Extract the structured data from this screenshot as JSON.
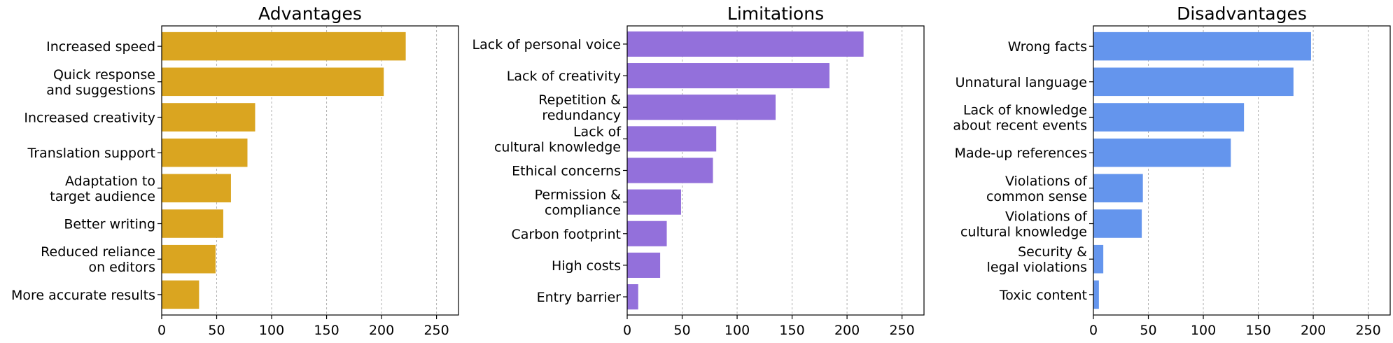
{
  "chart_data": [
    {
      "type": "bar",
      "orientation": "horizontal",
      "title": "Advantages",
      "color": "#DAA520",
      "xlim": [
        0,
        270
      ],
      "xticks": [
        "0",
        "50",
        "100",
        "150",
        "200",
        "250"
      ],
      "grid": "x-dashed",
      "categories": [
        [
          "Increased speed"
        ],
        [
          "Quick response",
          "and suggestions"
        ],
        [
          "Increased creativity"
        ],
        [
          "Translation support"
        ],
        [
          "Adaptation to",
          "target audience"
        ],
        [
          "Better writing"
        ],
        [
          "Reduced reliance",
          "on editors"
        ],
        [
          "More accurate results"
        ]
      ],
      "values": [
        222,
        202,
        85,
        78,
        63,
        56,
        49,
        34
      ]
    },
    {
      "type": "bar",
      "orientation": "horizontal",
      "title": "Limitations",
      "color": "#9370DB",
      "xlim": [
        0,
        270
      ],
      "xticks": [
        "0",
        "50",
        "100",
        "150",
        "200",
        "250"
      ],
      "grid": "x-dashed",
      "categories": [
        [
          "Lack of personal voice"
        ],
        [
          "Lack of creativity"
        ],
        [
          "Repetition &",
          "redundancy"
        ],
        [
          "Lack of",
          "cultural knowledge"
        ],
        [
          "Ethical concerns"
        ],
        [
          "Permission &",
          "compliance"
        ],
        [
          "Carbon footprint"
        ],
        [
          "High costs"
        ],
        [
          "Entry barrier"
        ]
      ],
      "values": [
        215,
        184,
        135,
        81,
        78,
        49,
        36,
        30,
        10
      ]
    },
    {
      "type": "bar",
      "orientation": "horizontal",
      "title": "Disadvantages",
      "color": "#6495ED",
      "xlim": [
        0,
        270
      ],
      "xticks": [
        "0",
        "50",
        "100",
        "150",
        "200",
        "250"
      ],
      "grid": "x-dashed",
      "categories": [
        [
          "Wrong facts"
        ],
        [
          "Unnatural language"
        ],
        [
          "Lack of knowledge",
          "about recent events"
        ],
        [
          "Made-up references"
        ],
        [
          "Violations of",
          "common sense"
        ],
        [
          "Violations of",
          "cultural knowledge"
        ],
        [
          "Security &",
          "legal violations"
        ],
        [
          "Toxic content"
        ]
      ],
      "values": [
        198,
        182,
        137,
        125,
        45,
        44,
        9,
        5
      ]
    }
  ]
}
